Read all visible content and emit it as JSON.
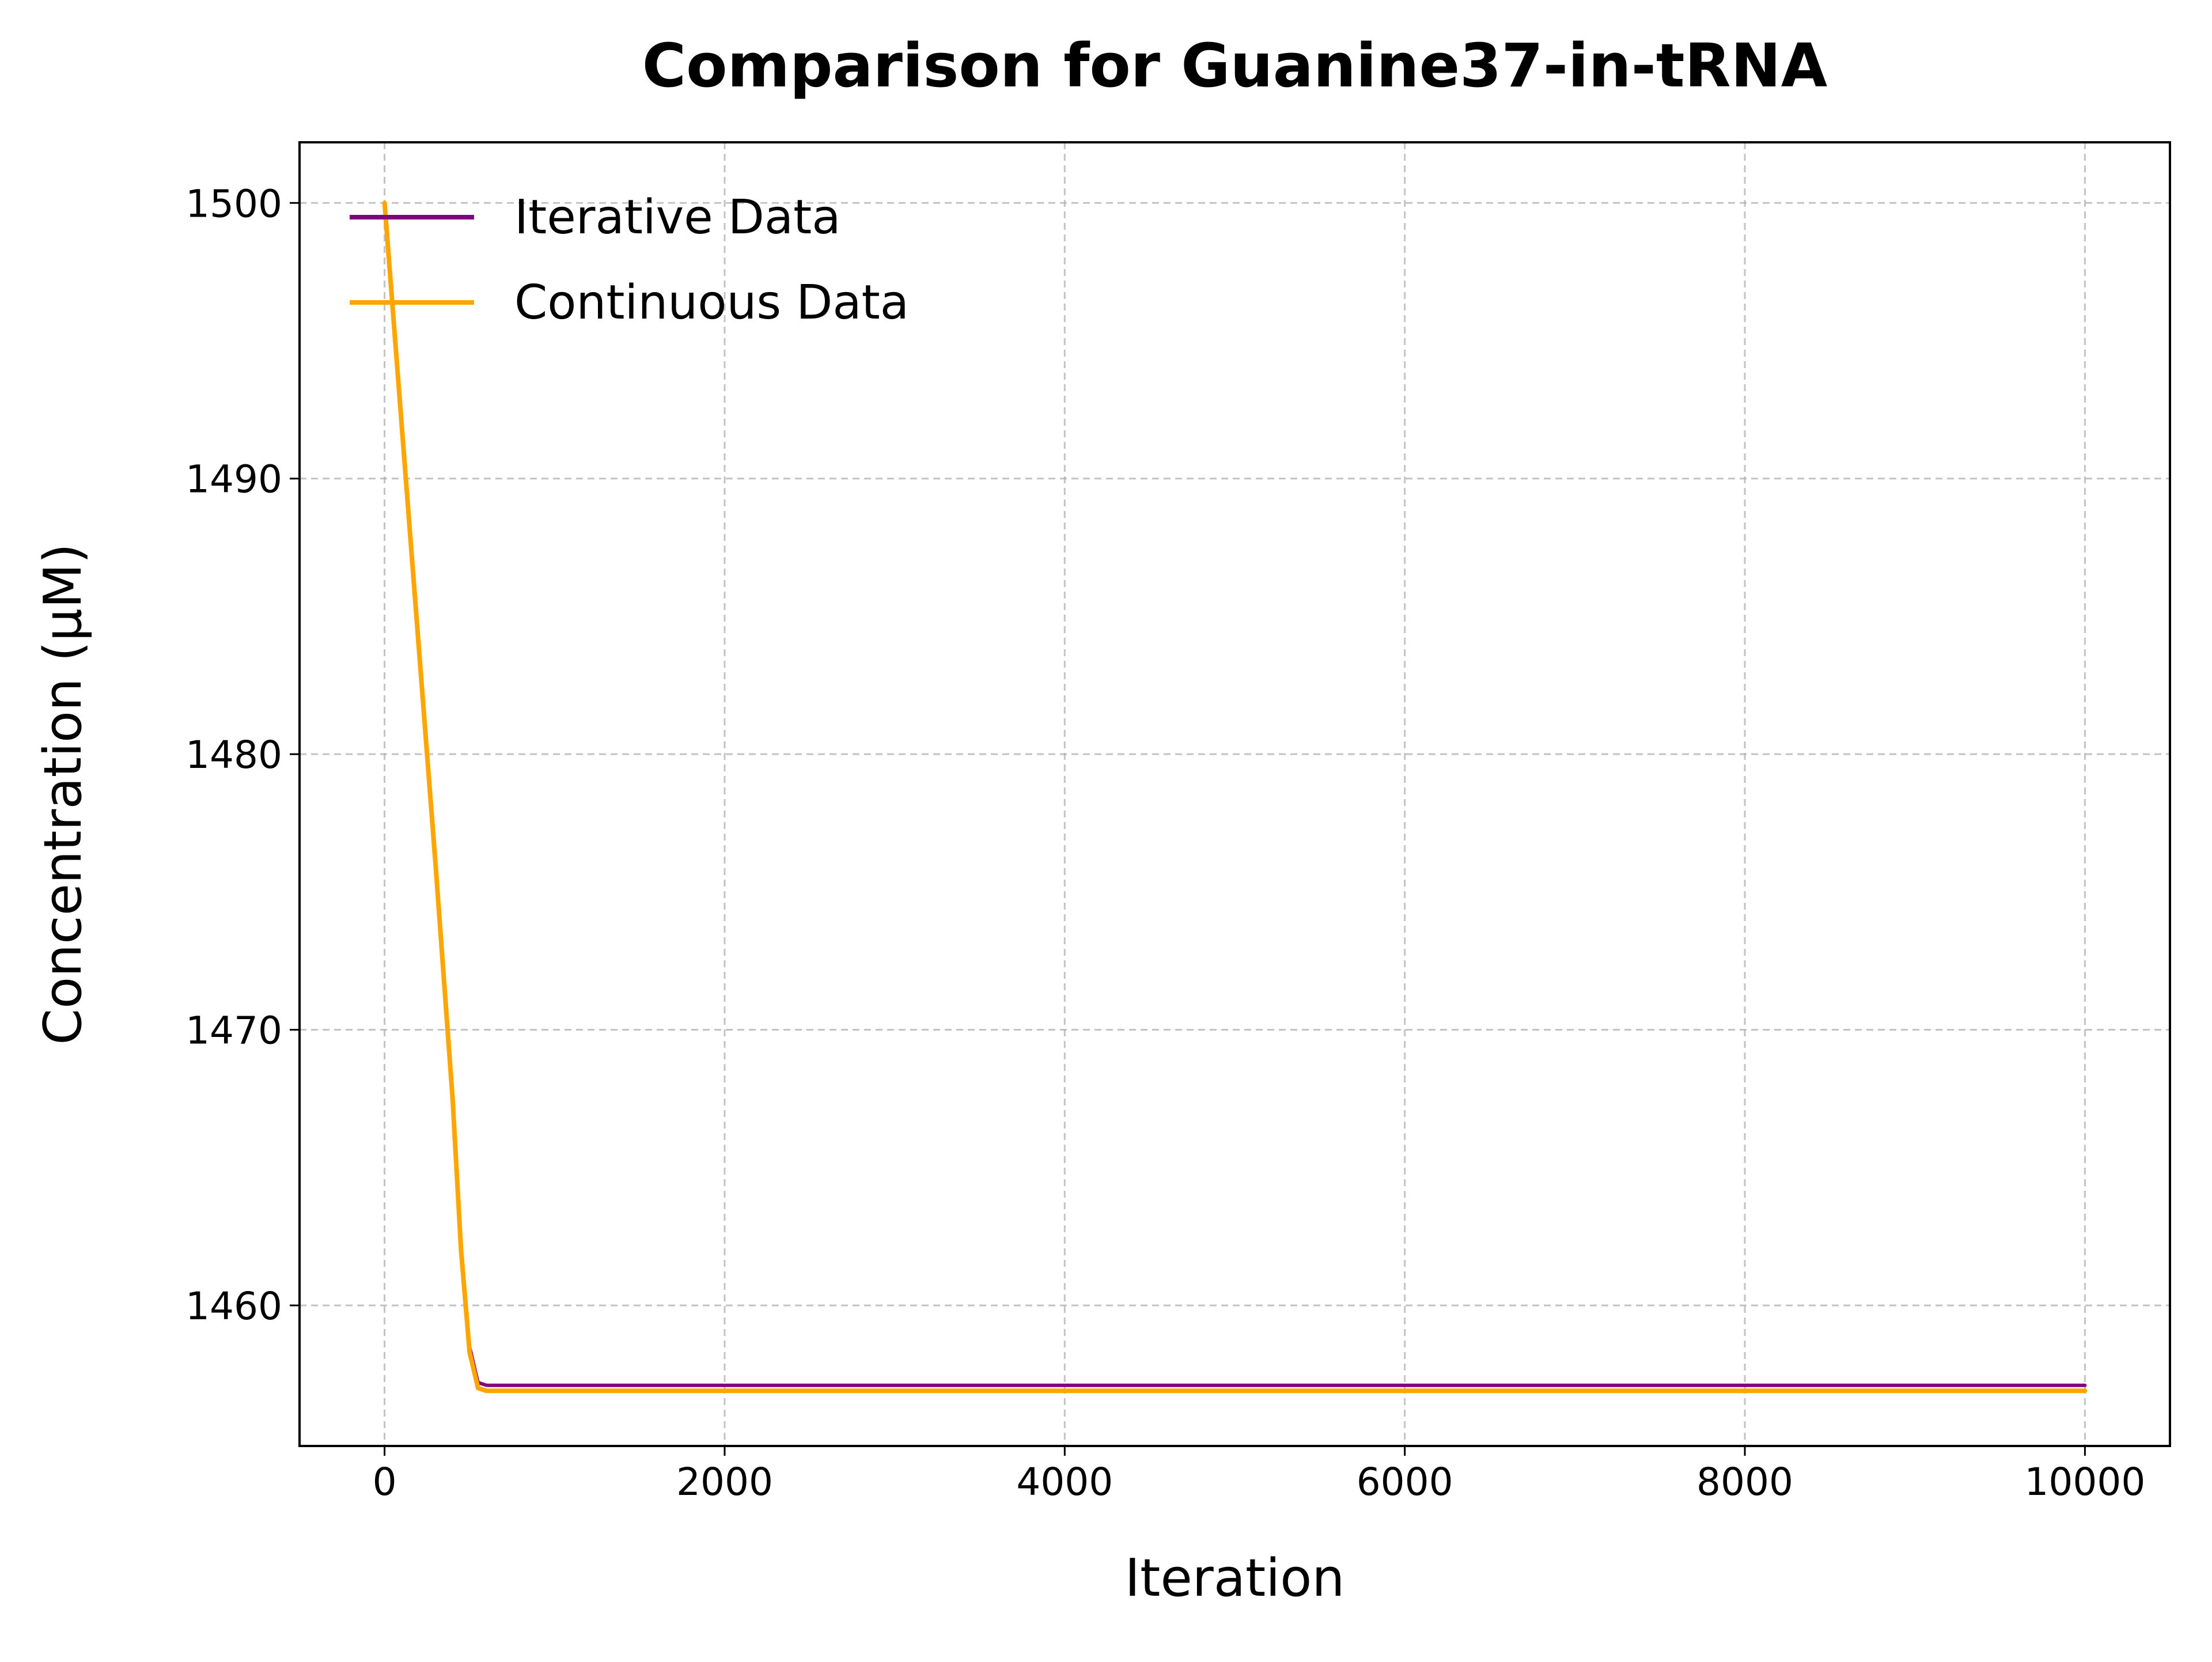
{
  "chart_data": {
    "type": "line",
    "title": "Comparison for Guanine37-in-tRNA",
    "xlabel": "Iteration",
    "ylabel": "Concentration (μM)",
    "xlim": [
      -500,
      10500
    ],
    "ylim": [
      1454.9,
      1502.2
    ],
    "xticks": [
      0,
      2000,
      4000,
      6000,
      8000,
      10000
    ],
    "yticks": [
      1460,
      1470,
      1480,
      1490,
      1500
    ],
    "grid": true,
    "legend_position": "upper-left",
    "series": [
      {
        "name": "Iterative Data",
        "color": "#800080",
        "x": [
          0,
          100,
          200,
          300,
          400,
          450,
          500,
          550,
          600,
          1000,
          2000,
          4000,
          6000,
          8000,
          10000
        ],
        "y": [
          1500,
          1492,
          1484,
          1476,
          1467.5,
          1462,
          1458.5,
          1457.2,
          1457.1,
          1457.1,
          1457.1,
          1457.1,
          1457.1,
          1457.1,
          1457.1
        ]
      },
      {
        "name": "Continuous Data",
        "color": "#FFA500",
        "x": [
          0,
          100,
          200,
          300,
          400,
          450,
          500,
          550,
          600,
          1000,
          2000,
          4000,
          6000,
          8000,
          10000
        ],
        "y": [
          1500,
          1492,
          1484,
          1476,
          1467.5,
          1462,
          1458.3,
          1457.0,
          1456.9,
          1456.9,
          1456.9,
          1456.9,
          1456.9,
          1456.9,
          1456.9
        ]
      }
    ]
  }
}
